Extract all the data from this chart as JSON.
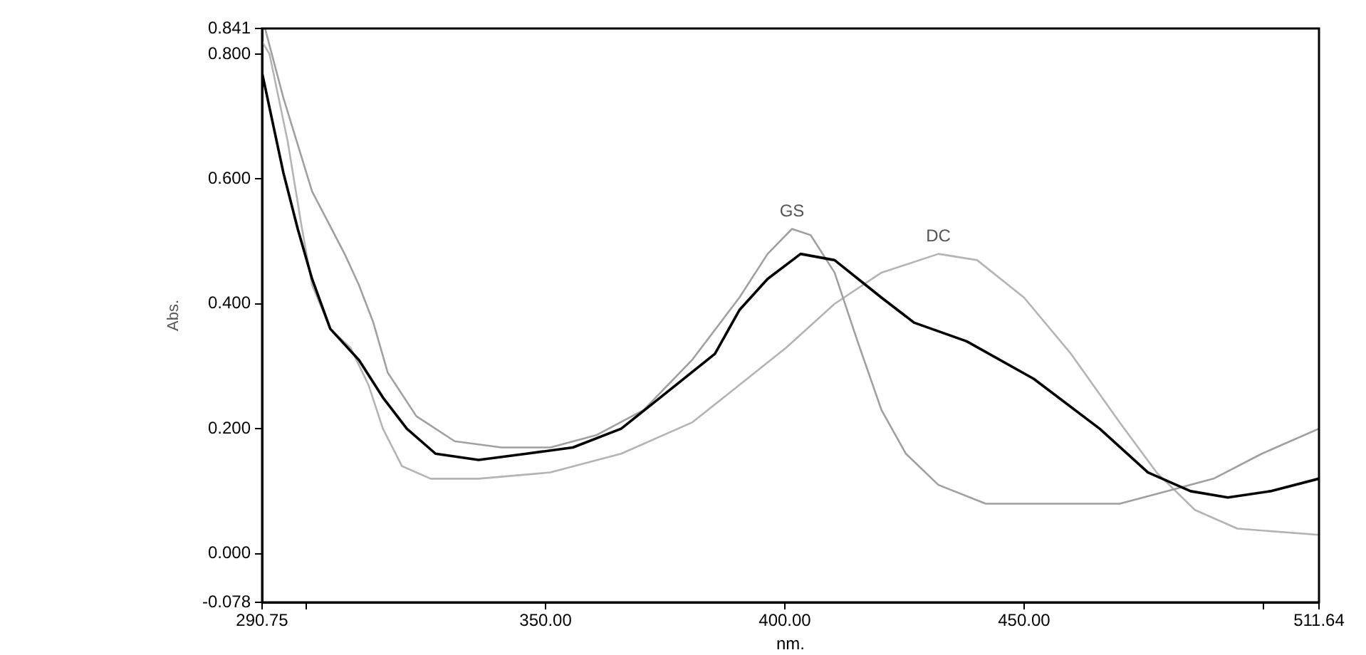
{
  "chart_data": {
    "type": "line",
    "xlabel": "nm.",
    "ylabel": "Abs.",
    "xlim": [
      290.75,
      511.64
    ],
    "ylim": [
      -0.078,
      0.841
    ],
    "xticks": [
      {
        "value": 290.75,
        "label": "290.75"
      },
      {
        "value": 300,
        "label": null
      },
      {
        "value": 350,
        "label": "350.00"
      },
      {
        "value": 400,
        "label": "400.00"
      },
      {
        "value": 450,
        "label": "450.00"
      },
      {
        "value": 500,
        "label": null
      },
      {
        "value": 511.64,
        "label": "511.64"
      }
    ],
    "yticks": [
      {
        "value": -0.078,
        "label": "-0.078"
      },
      {
        "value": 0,
        "label": "0.000"
      },
      {
        "value": 0.2,
        "label": "0.200"
      },
      {
        "value": 0.4,
        "label": "0.400"
      },
      {
        "value": 0.6,
        "label": "0.600"
      },
      {
        "value": 0.8,
        "label": "0.800"
      },
      {
        "value": 0.841,
        "label": "0.841"
      }
    ],
    "grid": false,
    "legend": false,
    "marker": "none",
    "line_style": "solid",
    "series": [
      {
        "color": "#000000",
        "x": [
          290.75,
          295.2,
          298.2,
          301.2,
          305,
          311,
          316,
          321,
          327,
          336,
          346,
          355.7,
          365.8,
          375.6,
          385.4,
          390.5,
          396.4,
          403.3,
          410.4,
          420.2,
          427,
          438,
          452,
          465.8,
          475.9,
          484.8,
          492.6,
          501.5,
          511.6
        ],
        "values": [
          0.77,
          0.61,
          0.52,
          0.44,
          0.36,
          0.31,
          0.25,
          0.2,
          0.16,
          0.15,
          0.16,
          0.17,
          0.2,
          0.26,
          0.32,
          0.39,
          0.44,
          0.48,
          0.47,
          0.41,
          0.37,
          0.34,
          0.28,
          0.2,
          0.13,
          0.1,
          0.09,
          0.1,
          0.12
        ]
      },
      {
        "name": "GS",
        "color": "#a0a0a0",
        "x": [
          291.4,
          295.2,
          301.2,
          308,
          311,
          314,
          317,
          323,
          331,
          340.8,
          351,
          360.7,
          370.5,
          380.6,
          390.5,
          396.4,
          401.5,
          405.4,
          410.4,
          415.2,
          420.2,
          425.3,
          432.1,
          442,
          455,
          470,
          479.8,
          489.6,
          499.7,
          511.6
        ],
        "values": [
          0.84,
          0.73,
          0.58,
          0.48,
          0.43,
          0.37,
          0.29,
          0.22,
          0.18,
          0.17,
          0.17,
          0.19,
          0.23,
          0.31,
          0.41,
          0.48,
          0.52,
          0.51,
          0.45,
          0.34,
          0.23,
          0.16,
          0.11,
          0.08,
          0.08,
          0.08,
          0.1,
          0.12,
          0.16,
          0.2
        ]
      },
      {
        "name": "DC",
        "color": "#b4b4b4",
        "x": [
          290.75,
          292.3,
          296.1,
          299.1,
          301.2,
          305,
          309.2,
          313,
          316,
          320,
          326,
          336,
          351,
          365.8,
          380.6,
          390.5,
          400.3,
          410.4,
          420.2,
          432.1,
          440.2,
          450,
          459.8,
          470,
          477.7,
          485.7,
          494.6,
          511.6
        ],
        "values": [
          0.82,
          0.8,
          0.66,
          0.52,
          0.43,
          0.36,
          0.33,
          0.27,
          0.2,
          0.14,
          0.12,
          0.12,
          0.13,
          0.16,
          0.21,
          0.27,
          0.33,
          0.4,
          0.45,
          0.48,
          0.47,
          0.41,
          0.32,
          0.21,
          0.13,
          0.07,
          0.04,
          0.03
        ]
      }
    ]
  }
}
